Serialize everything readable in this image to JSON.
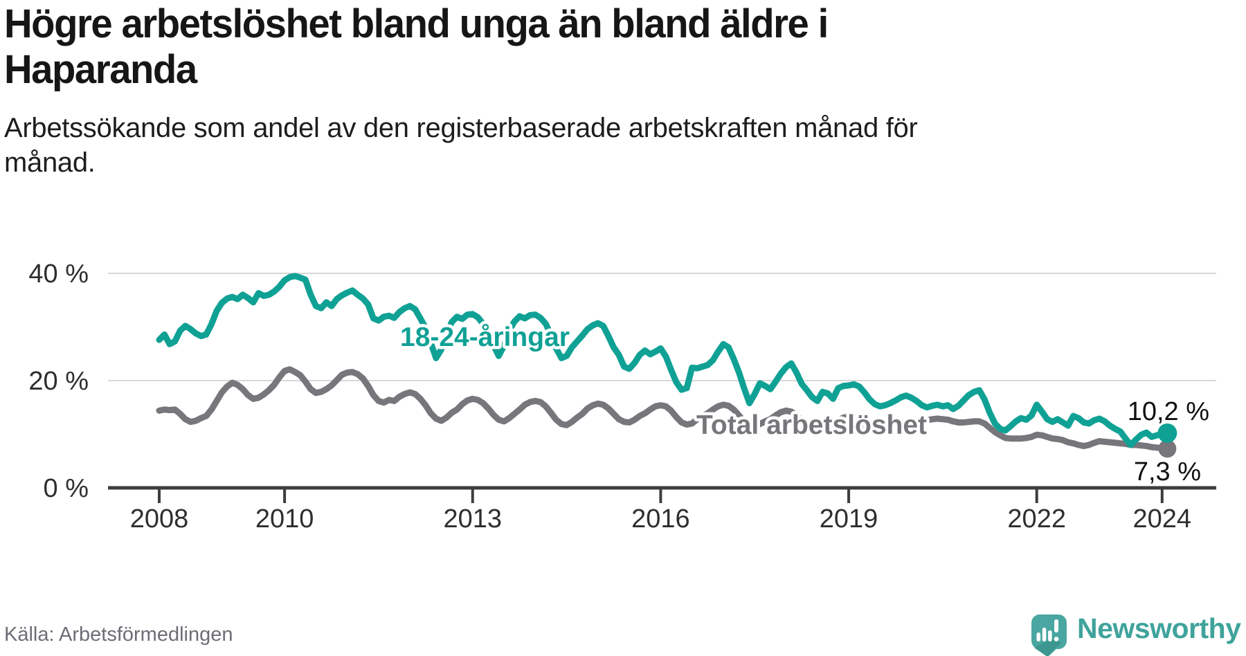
{
  "header": {
    "title_lines": [
      "Högre arbetslöshet bland unga än bland äldre i",
      "Haparanda"
    ],
    "subtitle_lines": [
      "Arbetssökande som andel av den registerbaserade arbetskraften månad för",
      "månad."
    ]
  },
  "footer": {
    "source": "Källa: Arbetsförmedlingen",
    "brand": "Newsworthy"
  },
  "colors": {
    "youth": "#10a195",
    "total": "#76767b",
    "gridline": "#d8d8d8",
    "axis": "#3d3d3d",
    "logo_bubble": "#4aa6a1",
    "logo_text": "#3fa39c"
  },
  "chart_data": {
    "type": "line",
    "unit": "%",
    "grid": "horizontal",
    "legend_position": "inline-labels",
    "x_months": {
      "start_year": 2008,
      "start_month": 1,
      "end_year": 2024,
      "end_month": 2
    },
    "x_axis": {
      "ticks": [
        {
          "year": 2008,
          "label": "2008"
        },
        {
          "year": 2010,
          "label": "2010"
        },
        {
          "year": 2013,
          "label": "2013"
        },
        {
          "year": 2016,
          "label": "2016"
        },
        {
          "year": 2019,
          "label": "2019"
        },
        {
          "year": 2022,
          "label": "2022"
        },
        {
          "year": 2024,
          "label": "2024"
        }
      ]
    },
    "y_axis": {
      "max": 43,
      "ticks": [
        {
          "value": 0,
          "label": "0 %"
        },
        {
          "value": 20,
          "label": "20 %"
        },
        {
          "value": 40,
          "label": "40 %"
        }
      ]
    },
    "series": [
      {
        "id": "youth",
        "name": "18-24-åringar",
        "color": "#10a195",
        "end_value": 10.2,
        "end_label": "10,2 %",
        "values": [
          27.6,
          28.6,
          26.8,
          27.3,
          29.3,
          30.2,
          29.6,
          28.8,
          28.3,
          28.6,
          30.5,
          33.0,
          34.5,
          35.3,
          35.6,
          35.2,
          36.0,
          35.4,
          34.6,
          36.3,
          35.8,
          36.0,
          36.6,
          37.5,
          38.7,
          39.3,
          39.5,
          39.2,
          38.8,
          36.0,
          33.9,
          33.5,
          34.6,
          33.9,
          35.2,
          35.9,
          36.4,
          36.8,
          36.0,
          35.3,
          34.2,
          31.6,
          31.2,
          31.9,
          32.1,
          31.7,
          32.8,
          33.5,
          33.9,
          33.3,
          31.6,
          29.8,
          27.0,
          24.2,
          25.8,
          28.6,
          30.9,
          31.9,
          31.5,
          32.3,
          32.4,
          31.8,
          30.6,
          29.0,
          26.6,
          24.6,
          26.5,
          29.3,
          31.0,
          32.0,
          31.6,
          32.2,
          32.3,
          31.7,
          30.6,
          28.5,
          26.0,
          24.2,
          24.6,
          26.2,
          27.3,
          28.4,
          29.6,
          30.3,
          30.7,
          30.2,
          28.3,
          26.2,
          24.8,
          22.6,
          22.2,
          23.3,
          24.8,
          25.6,
          24.9,
          25.4,
          26.0,
          24.5,
          22.0,
          19.7,
          18.3,
          18.6,
          22.4,
          22.3,
          22.6,
          22.9,
          23.8,
          25.4,
          26.8,
          26.2,
          24.0,
          21.5,
          18.5,
          15.8,
          17.5,
          19.5,
          19.0,
          18.4,
          19.8,
          21.3,
          22.5,
          23.2,
          21.5,
          19.4,
          18.2,
          16.9,
          16.2,
          17.9,
          17.6,
          16.6,
          18.6,
          19.0,
          19.1,
          19.3,
          18.9,
          17.8,
          16.5,
          15.6,
          15.2,
          15.4,
          15.8,
          16.3,
          16.9,
          17.2,
          16.8,
          16.2,
          15.4,
          15.0,
          15.3,
          15.5,
          15.2,
          15.4,
          14.7,
          15.3,
          16.3,
          17.3,
          17.9,
          18.2,
          16.5,
          14.0,
          12.0,
          11.0,
          10.7,
          11.5,
          12.4,
          13.0,
          12.7,
          13.5,
          15.5,
          14.2,
          12.8,
          12.3,
          12.8,
          12.2,
          11.6,
          13.4,
          13.0,
          12.2,
          12.0,
          12.6,
          12.9,
          12.4,
          11.6,
          11.0,
          10.5,
          9.2,
          8.0,
          9.0,
          9.9,
          10.3,
          9.5,
          9.8,
          10.0,
          10.2
        ]
      },
      {
        "id": "total",
        "name": "Total arbetslöshet",
        "color": "#76767b",
        "end_value": 7.3,
        "end_label": "7,3 %",
        "values": [
          14.4,
          14.6,
          14.5,
          14.6,
          13.8,
          12.8,
          12.3,
          12.5,
          13.0,
          13.4,
          14.6,
          16.2,
          17.8,
          18.9,
          19.6,
          19.2,
          18.4,
          17.3,
          16.6,
          16.8,
          17.4,
          18.2,
          19.2,
          20.6,
          21.8,
          22.1,
          21.6,
          21.0,
          19.8,
          18.4,
          17.7,
          17.9,
          18.4,
          19.1,
          20.1,
          21.1,
          21.5,
          21.6,
          21.2,
          20.4,
          19.0,
          17.3,
          16.2,
          15.9,
          16.4,
          16.2,
          17.0,
          17.5,
          17.8,
          17.5,
          16.6,
          15.4,
          13.9,
          12.9,
          12.5,
          13.1,
          14.0,
          14.6,
          15.6,
          16.3,
          16.6,
          16.4,
          15.8,
          14.8,
          13.6,
          12.7,
          12.4,
          13.0,
          13.8,
          14.6,
          15.5,
          16.0,
          16.2,
          16.0,
          15.2,
          14.0,
          12.7,
          11.9,
          11.7,
          12.3,
          13.1,
          13.8,
          14.8,
          15.4,
          15.7,
          15.5,
          14.8,
          13.8,
          12.8,
          12.3,
          12.2,
          12.7,
          13.4,
          13.9,
          14.6,
          15.2,
          15.4,
          15.2,
          14.4,
          13.2,
          12.2,
          11.8,
          12.0,
          12.8,
          13.4,
          13.9,
          14.6,
          15.2,
          15.5,
          15.3,
          14.6,
          13.5,
          12.3,
          11.6,
          11.4,
          11.9,
          12.4,
          12.8,
          13.5,
          14.1,
          14.4,
          14.2,
          13.5,
          12.5,
          11.5,
          10.9,
          10.7,
          11.1,
          11.6,
          12.0,
          12.6,
          13.1,
          13.3,
          13.1,
          12.5,
          11.7,
          10.8,
          10.3,
          10.2,
          10.6,
          11.1,
          11.5,
          12.0,
          12.4,
          12.6,
          12.5,
          12.4,
          12.6,
          12.8,
          12.9,
          12.8,
          12.7,
          12.4,
          12.2,
          12.2,
          12.3,
          12.4,
          12.4,
          12.0,
          11.2,
          10.4,
          9.8,
          9.3,
          9.2,
          9.2,
          9.2,
          9.3,
          9.5,
          9.9,
          9.8,
          9.5,
          9.2,
          9.1,
          8.9,
          8.5,
          8.3,
          8.0,
          7.8,
          8.0,
          8.4,
          8.7,
          8.6,
          8.5,
          8.4,
          8.3,
          8.2,
          8.0,
          8.0,
          7.9,
          7.8,
          7.6,
          7.5,
          7.4,
          7.3
        ]
      }
    ]
  }
}
